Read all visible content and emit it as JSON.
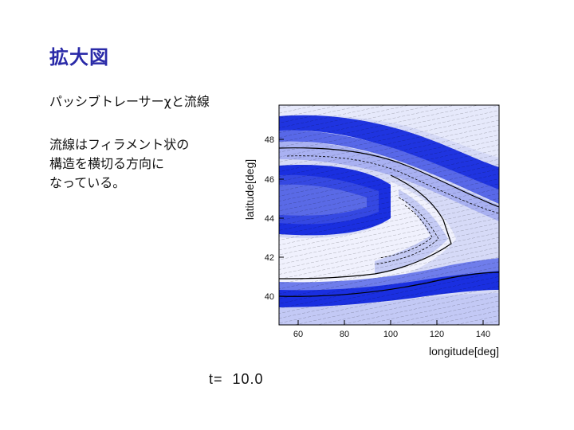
{
  "slide": {
    "title": "拡大図",
    "lines": [
      "パッシブトレーサーχと流線",
      "流線はフィラメント状の",
      "構造を横切る方向に",
      "なっている。"
    ],
    "time_label": "t=  10.0"
  },
  "plot": {
    "xlabel": "longitude[deg]",
    "ylabel": "latitude[deg]",
    "x_ticks": [
      "60",
      "80",
      "100",
      "120",
      "140"
    ],
    "y_ticks": [
      "40",
      "42",
      "44",
      "46",
      "48"
    ],
    "colors": {
      "deep": "#1a2fe0",
      "mid": "#5a6ae6",
      "light": "#b3baf2",
      "pale": "#e4e7fb"
    }
  }
}
